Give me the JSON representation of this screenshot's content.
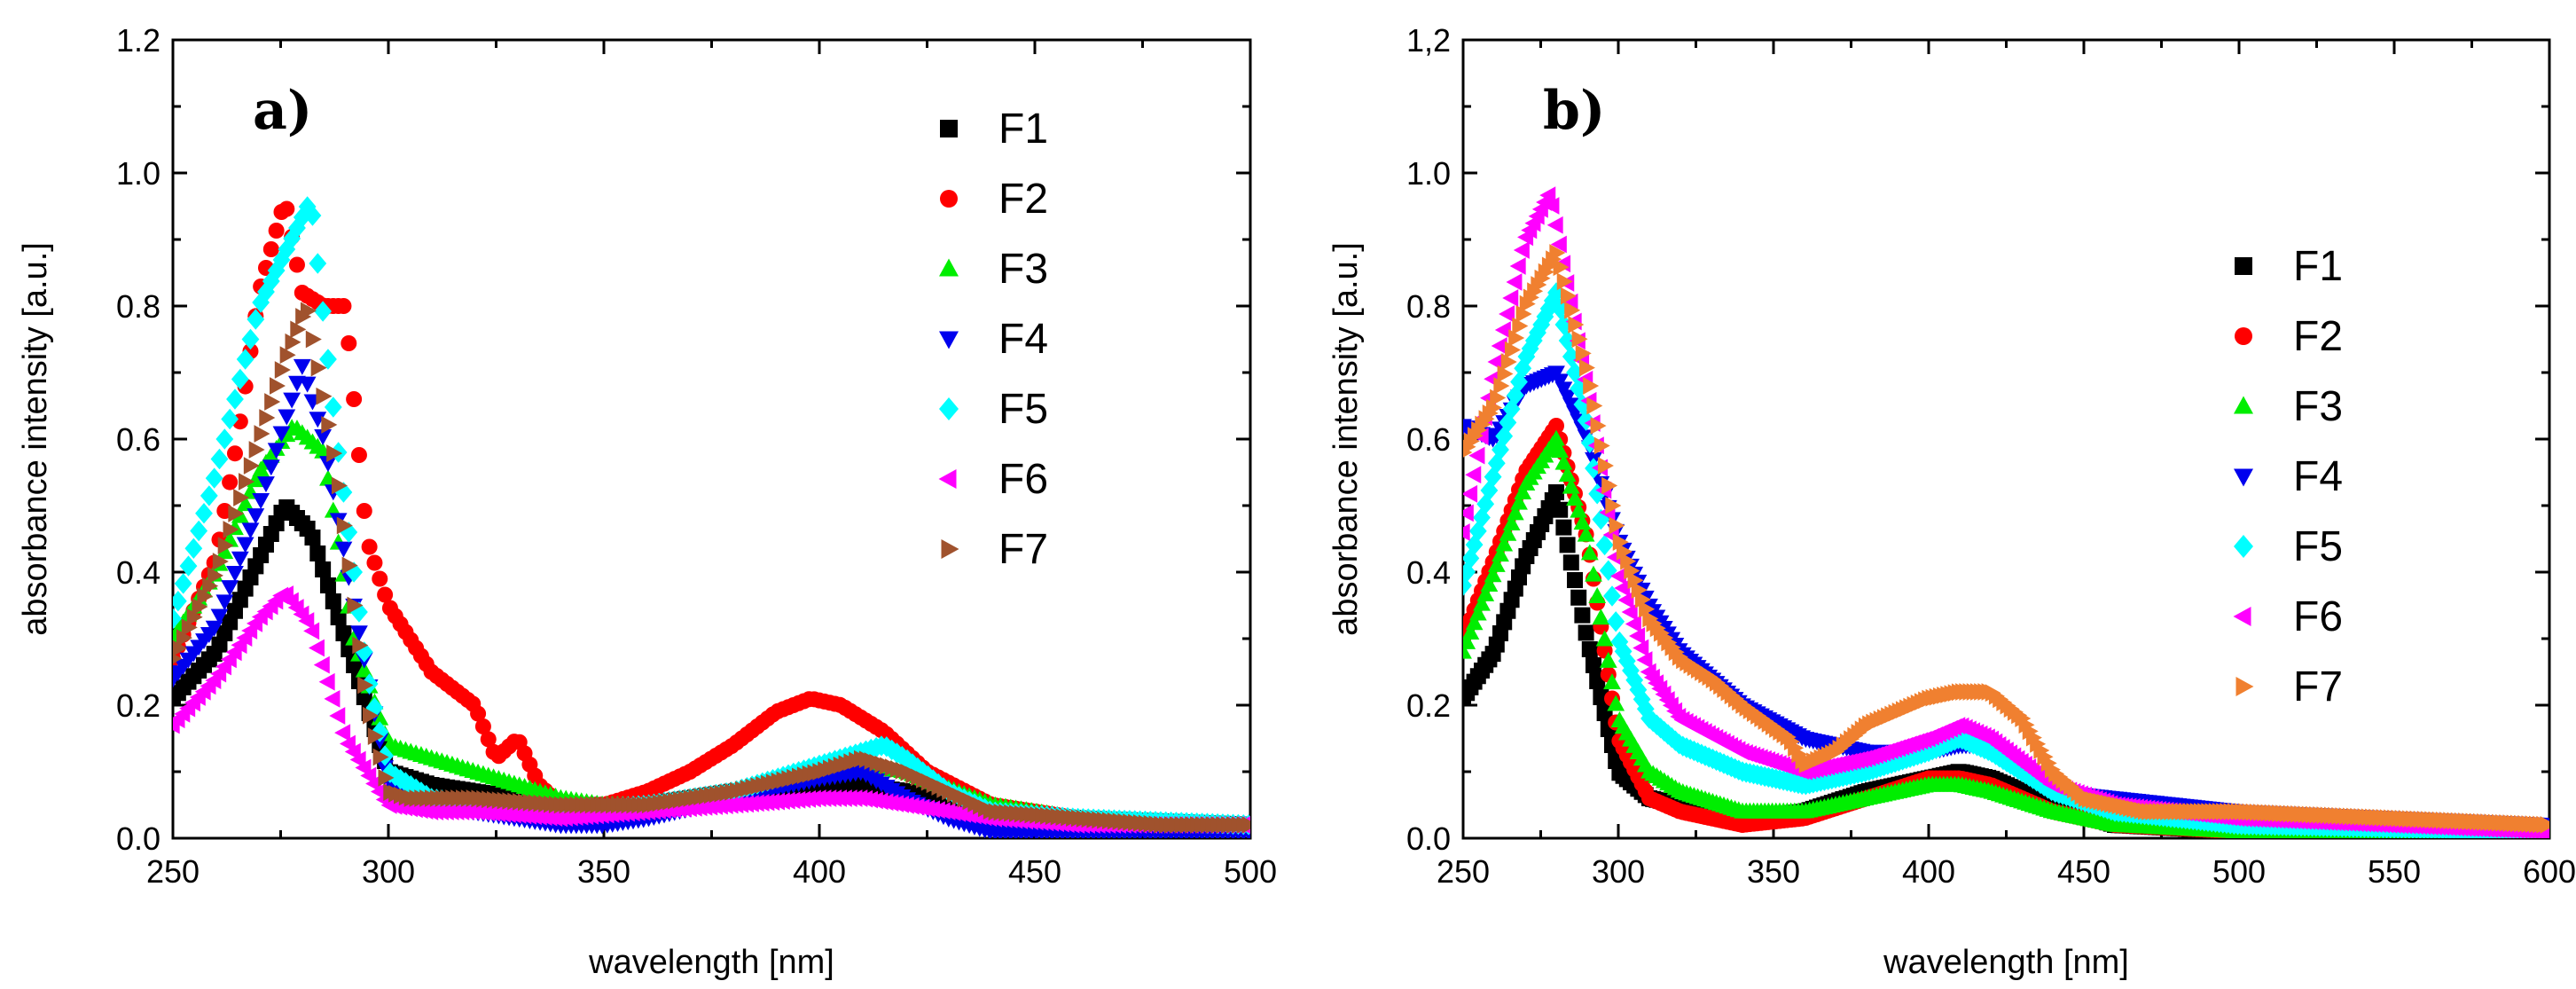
{
  "chart_data": [
    {
      "type": "scatter",
      "panel_label": "a)",
      "xlabel": "wavelength [nm]",
      "ylabel": "absorbance intensity [a.u.]",
      "xlim": [
        250,
        500
      ],
      "ylim": [
        0.0,
        1.2
      ],
      "xticks": [
        250,
        300,
        350,
        400,
        450,
        500
      ],
      "xtick_labels": [
        "250",
        "300",
        "350",
        "400",
        "450",
        "500"
      ],
      "yticks": [
        0.0,
        0.2,
        0.4,
        0.6,
        0.8,
        1.0,
        1.2
      ],
      "ytick_labels": [
        "0.0",
        "0.2",
        "0.4",
        "0.6",
        "0.8",
        "1.0",
        "1.2"
      ],
      "legend_position": "top-right",
      "series": [
        {
          "name": "F1",
          "color": "#000000",
          "marker": "square",
          "x": [
            250,
            260,
            270,
            276,
            282,
            290,
            300,
            310,
            320,
            340,
            360,
            380,
            400,
            410,
            420,
            440,
            460,
            500
          ],
          "y": [
            0.21,
            0.28,
            0.42,
            0.5,
            0.46,
            0.3,
            0.1,
            0.08,
            0.07,
            0.05,
            0.05,
            0.07,
            0.08,
            0.08,
            0.07,
            0.04,
            0.03,
            0.02
          ]
        },
        {
          "name": "F2",
          "color": "#ff0000",
          "marker": "circle",
          "x": [
            250,
            260,
            265,
            270,
            276,
            280,
            285,
            290,
            295,
            300,
            305,
            310,
            320,
            325,
            330,
            335,
            340,
            350,
            360,
            370,
            380,
            390,
            398,
            405,
            415,
            425,
            440,
            460,
            480,
            500
          ],
          "y": [
            0.27,
            0.42,
            0.6,
            0.82,
            0.96,
            0.82,
            0.8,
            0.8,
            0.45,
            0.35,
            0.3,
            0.25,
            0.2,
            0.12,
            0.15,
            0.08,
            0.05,
            0.05,
            0.07,
            0.1,
            0.14,
            0.19,
            0.21,
            0.2,
            0.16,
            0.1,
            0.05,
            0.03,
            0.02,
            0.02
          ]
        },
        {
          "name": "F3",
          "color": "#00ee00",
          "marker": "triangle-up",
          "x": [
            250,
            260,
            270,
            278,
            285,
            292,
            300,
            310,
            320,
            330,
            340,
            350,
            360,
            380,
            400,
            410,
            420,
            440,
            460,
            500
          ],
          "y": [
            0.3,
            0.4,
            0.55,
            0.62,
            0.58,
            0.3,
            0.14,
            0.12,
            0.1,
            0.08,
            0.06,
            0.05,
            0.05,
            0.07,
            0.1,
            0.11,
            0.1,
            0.05,
            0.03,
            0.02
          ]
        },
        {
          "name": "F4",
          "color": "#0000ee",
          "marker": "triangle-down",
          "x": [
            250,
            260,
            270,
            280,
            285,
            292,
            300,
            310,
            320,
            330,
            340,
            350,
            360,
            380,
            400,
            410,
            420,
            430,
            440,
            460,
            500
          ],
          "y": [
            0.24,
            0.32,
            0.5,
            0.71,
            0.6,
            0.35,
            0.08,
            0.05,
            0.04,
            0.03,
            0.02,
            0.02,
            0.03,
            0.06,
            0.09,
            0.1,
            0.06,
            0.03,
            0.01,
            0.01,
            0.01
          ]
        },
        {
          "name": "F5",
          "color": "#00ffff",
          "marker": "diamond",
          "x": [
            250,
            260,
            270,
            276,
            282,
            288,
            295,
            300,
            310,
            320,
            340,
            360,
            380,
            400,
            410,
            415,
            420,
            430,
            440,
            460,
            500
          ],
          "y": [
            0.33,
            0.55,
            0.8,
            0.88,
            0.96,
            0.6,
            0.25,
            0.1,
            0.06,
            0.05,
            0.04,
            0.05,
            0.07,
            0.11,
            0.13,
            0.14,
            0.12,
            0.07,
            0.04,
            0.03,
            0.02
          ]
        },
        {
          "name": "F6",
          "color": "#ff00ff",
          "marker": "triangle-left",
          "x": [
            250,
            260,
            270,
            276,
            282,
            290,
            300,
            310,
            320,
            340,
            360,
            380,
            400,
            410,
            420,
            440,
            460,
            500
          ],
          "y": [
            0.17,
            0.24,
            0.33,
            0.37,
            0.32,
            0.15,
            0.05,
            0.04,
            0.04,
            0.03,
            0.04,
            0.05,
            0.06,
            0.06,
            0.05,
            0.03,
            0.02,
            0.02
          ]
        },
        {
          "name": "F7",
          "color": "#a0522d",
          "marker": "triangle-right",
          "x": [
            250,
            260,
            270,
            276,
            281,
            288,
            295,
            300,
            305,
            320,
            340,
            360,
            380,
            400,
            410,
            420,
            440,
            460,
            480,
            500
          ],
          "y": [
            0.27,
            0.4,
            0.6,
            0.72,
            0.8,
            0.55,
            0.2,
            0.07,
            0.06,
            0.06,
            0.05,
            0.05,
            0.07,
            0.1,
            0.12,
            0.1,
            0.04,
            0.03,
            0.02,
            0.02
          ]
        }
      ]
    },
    {
      "type": "scatter",
      "panel_label": "b)",
      "xlabel": "wavelength [nm]",
      "ylabel": "absorbance intensity [a.u.]",
      "xlim": [
        250,
        600
      ],
      "ylim": [
        0.0,
        1.2
      ],
      "xticks": [
        250,
        300,
        350,
        400,
        450,
        500,
        550,
        600
      ],
      "xtick_labels": [
        "250",
        "300",
        "350",
        "400",
        "450",
        "500",
        "550",
        "600"
      ],
      "yticks": [
        0.0,
        0.2,
        0.4,
        0.6,
        0.8,
        1.0,
        1.2
      ],
      "ytick_labels": [
        "0.0",
        "0.2",
        "0.4",
        "0.6",
        "0.8",
        "1.0",
        "1,2"
      ],
      "legend_position": "right",
      "series": [
        {
          "name": "F1",
          "color": "#000000",
          "marker": "square",
          "x": [
            250,
            260,
            270,
            280,
            290,
            300,
            310,
            320,
            340,
            360,
            380,
            400,
            410,
            420,
            440,
            460,
            500,
            600
          ],
          "y": [
            0.21,
            0.28,
            0.42,
            0.52,
            0.3,
            0.1,
            0.06,
            0.05,
            0.03,
            0.04,
            0.07,
            0.09,
            0.1,
            0.09,
            0.05,
            0.02,
            0.01,
            0.01
          ]
        },
        {
          "name": "F2",
          "color": "#ff0000",
          "marker": "circle",
          "x": [
            250,
            260,
            270,
            280,
            290,
            300,
            310,
            320,
            340,
            360,
            380,
            400,
            410,
            420,
            440,
            460,
            500,
            600
          ],
          "y": [
            0.3,
            0.42,
            0.55,
            0.62,
            0.45,
            0.15,
            0.06,
            0.04,
            0.02,
            0.03,
            0.06,
            0.09,
            0.09,
            0.08,
            0.04,
            0.02,
            0.01,
            0.01
          ]
        },
        {
          "name": "F3",
          "color": "#00ee00",
          "marker": "triangle-up",
          "x": [
            250,
            260,
            270,
            280,
            290,
            300,
            310,
            320,
            340,
            360,
            380,
            400,
            410,
            420,
            440,
            460,
            500,
            600
          ],
          "y": [
            0.28,
            0.4,
            0.53,
            0.6,
            0.45,
            0.18,
            0.1,
            0.07,
            0.04,
            0.04,
            0.06,
            0.08,
            0.08,
            0.07,
            0.04,
            0.02,
            0.01,
            0.01
          ]
        },
        {
          "name": "F4",
          "color": "#0000ee",
          "marker": "triangle-down",
          "x": [
            250,
            260,
            270,
            280,
            290,
            300,
            310,
            320,
            340,
            360,
            380,
            400,
            410,
            420,
            430,
            440,
            460,
            500,
            550,
            600
          ],
          "y": [
            0.62,
            0.6,
            0.68,
            0.7,
            0.6,
            0.45,
            0.35,
            0.28,
            0.2,
            0.15,
            0.13,
            0.13,
            0.14,
            0.14,
            0.1,
            0.07,
            0.06,
            0.04,
            0.03,
            0.02
          ]
        },
        {
          "name": "F5",
          "color": "#00ffff",
          "marker": "diamond",
          "x": [
            250,
            260,
            270,
            280,
            290,
            300,
            310,
            320,
            340,
            360,
            380,
            400,
            410,
            420,
            440,
            460,
            500,
            600
          ],
          "y": [
            0.38,
            0.55,
            0.72,
            0.82,
            0.62,
            0.3,
            0.18,
            0.14,
            0.1,
            0.08,
            0.1,
            0.13,
            0.15,
            0.13,
            0.07,
            0.04,
            0.02,
            0.01
          ]
        },
        {
          "name": "F6",
          "color": "#ff00ff",
          "marker": "triangle-left",
          "x": [
            250,
            260,
            270,
            278,
            290,
            300,
            310,
            320,
            340,
            360,
            380,
            400,
            410,
            420,
            440,
            460,
            500,
            550,
            600
          ],
          "y": [
            0.46,
            0.7,
            0.9,
            0.97,
            0.68,
            0.4,
            0.25,
            0.18,
            0.13,
            0.1,
            0.12,
            0.15,
            0.17,
            0.15,
            0.08,
            0.05,
            0.03,
            0.02,
            0.01
          ]
        },
        {
          "name": "F7",
          "color": "#f08030",
          "marker": "triangle-right",
          "x": [
            250,
            260,
            270,
            280,
            290,
            300,
            310,
            320,
            330,
            340,
            355,
            360,
            370,
            380,
            390,
            400,
            410,
            420,
            430,
            440,
            450,
            470,
            500,
            550,
            600
          ],
          "y": [
            0.58,
            0.65,
            0.8,
            0.88,
            0.7,
            0.45,
            0.33,
            0.27,
            0.24,
            0.2,
            0.15,
            0.11,
            0.13,
            0.17,
            0.19,
            0.21,
            0.22,
            0.22,
            0.18,
            0.1,
            0.06,
            0.04,
            0.04,
            0.03,
            0.02
          ]
        }
      ]
    }
  ]
}
